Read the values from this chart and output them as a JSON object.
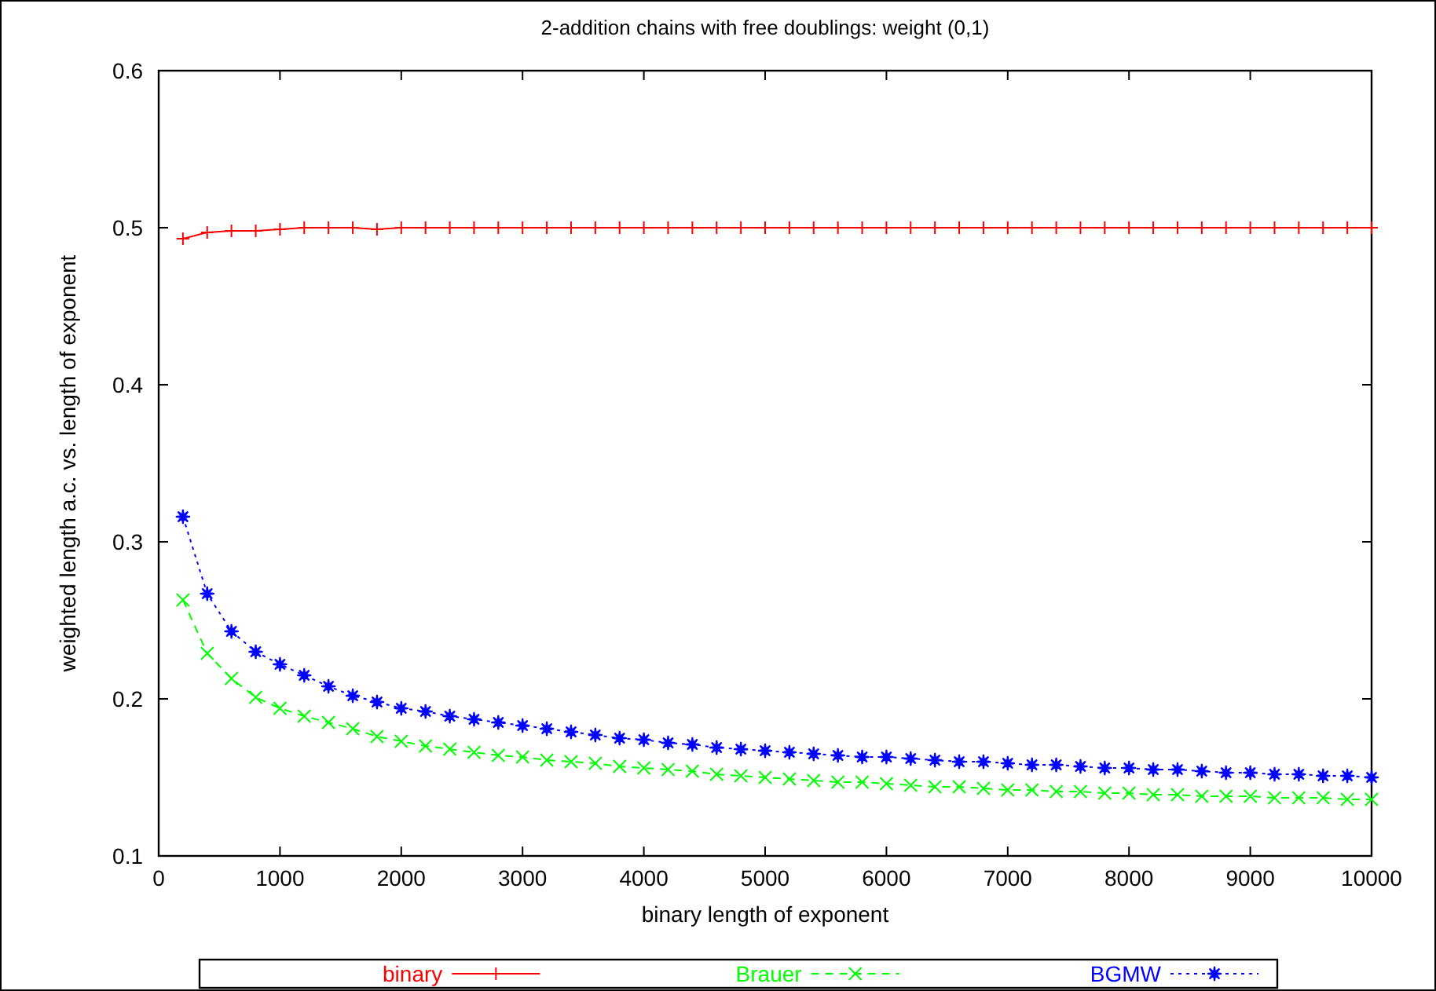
{
  "chart_data": {
    "type": "line",
    "title": "2-addition chains with free doublings: weight (0,1)",
    "xlabel": "binary length of exponent",
    "ylabel": "weighted length a.c. vs. length of exponent",
    "x": [
      200,
      400,
      600,
      800,
      1000,
      1200,
      1400,
      1600,
      1800,
      2000,
      2200,
      2400,
      2600,
      2800,
      3000,
      3200,
      3400,
      3600,
      3800,
      4000,
      4200,
      4400,
      4600,
      4800,
      5000,
      5200,
      5400,
      5600,
      5800,
      6000,
      6200,
      6400,
      6600,
      6800,
      7000,
      7200,
      7400,
      7600,
      7800,
      8000,
      8200,
      8400,
      8600,
      8800,
      9000,
      9200,
      9400,
      9600,
      9800,
      10000
    ],
    "xlim": [
      0,
      10000
    ],
    "xticks": [
      0,
      1000,
      2000,
      3000,
      4000,
      5000,
      6000,
      7000,
      8000,
      9000,
      10000
    ],
    "ylim": [
      0.1,
      0.6
    ],
    "yticks": [
      {
        "value": 0.1,
        "label": "0.1"
      },
      {
        "value": 0.2,
        "label": "0.2"
      },
      {
        "value": 0.3,
        "label": "0.3"
      },
      {
        "value": 0.4,
        "label": "0.4"
      },
      {
        "value": 0.5,
        "label": "0.5"
      },
      {
        "value": 0.6,
        "label": "0.6"
      }
    ],
    "grid": false,
    "legend": "bottom",
    "series": [
      {
        "name": "binary",
        "color": "#ff0000",
        "marker": "plus",
        "line_style": "solid",
        "values": [
          0.493,
          0.497,
          0.498,
          0.498,
          0.499,
          0.5,
          0.5,
          0.5,
          0.499,
          0.5,
          0.5,
          0.5,
          0.5,
          0.5,
          0.5,
          0.5,
          0.5,
          0.5,
          0.5,
          0.5,
          0.5,
          0.5,
          0.5,
          0.5,
          0.5,
          0.5,
          0.5,
          0.5,
          0.5,
          0.5,
          0.5,
          0.5,
          0.5,
          0.5,
          0.5,
          0.5,
          0.5,
          0.5,
          0.5,
          0.5,
          0.5,
          0.5,
          0.5,
          0.5,
          0.5,
          0.5,
          0.5,
          0.5,
          0.5,
          0.5
        ]
      },
      {
        "name": "Brauer",
        "color": "#00ff00",
        "marker": "cross",
        "line_style": "dashed",
        "values": [
          0.263,
          0.229,
          0.213,
          0.201,
          0.194,
          0.189,
          0.185,
          0.181,
          0.176,
          0.173,
          0.17,
          0.168,
          0.166,
          0.164,
          0.163,
          0.161,
          0.16,
          0.159,
          0.157,
          0.156,
          0.155,
          0.154,
          0.152,
          0.151,
          0.15,
          0.149,
          0.148,
          0.147,
          0.147,
          0.146,
          0.145,
          0.144,
          0.144,
          0.143,
          0.142,
          0.142,
          0.141,
          0.141,
          0.14,
          0.14,
          0.139,
          0.139,
          0.138,
          0.138,
          0.138,
          0.137,
          0.137,
          0.137,
          0.136,
          0.136
        ]
      },
      {
        "name": "BGMW",
        "color": "#0000ff",
        "marker": "star",
        "line_style": "dotted",
        "values": [
          0.316,
          0.267,
          0.243,
          0.23,
          0.222,
          0.215,
          0.208,
          0.202,
          0.198,
          0.194,
          0.192,
          0.189,
          0.187,
          0.185,
          0.183,
          0.181,
          0.179,
          0.177,
          0.175,
          0.174,
          0.172,
          0.171,
          0.169,
          0.168,
          0.167,
          0.166,
          0.165,
          0.164,
          0.163,
          0.163,
          0.162,
          0.161,
          0.16,
          0.16,
          0.159,
          0.158,
          0.158,
          0.157,
          0.156,
          0.156,
          0.155,
          0.155,
          0.154,
          0.153,
          0.153,
          0.152,
          0.152,
          0.151,
          0.151,
          0.15
        ]
      }
    ]
  }
}
